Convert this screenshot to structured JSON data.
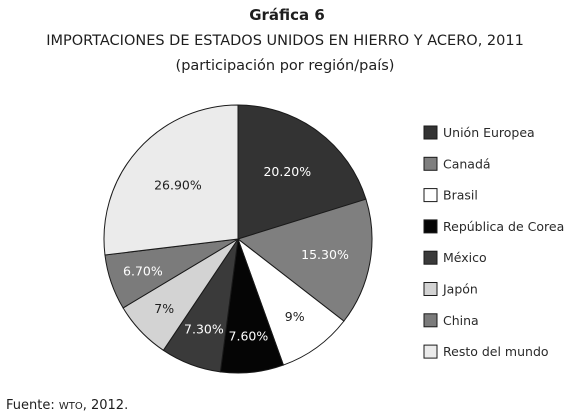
{
  "header": {
    "title": "Gráfica 6",
    "subtitle": "IMPORTACIONES DE ESTADOS UNIDOS EN HIERRO Y ACERO, 2011",
    "note": "(participación por región/país)"
  },
  "footer": {
    "source_label": "Fuente:",
    "source_org": "WTO",
    "source_year": ", 2012."
  },
  "chart_data": {
    "type": "pie",
    "title": "IMPORTACIONES DE ESTADOS UNIDOS EN HIERRO Y ACERO, 2011",
    "legend_position": "right",
    "slices": [
      {
        "name": "Unión Europea",
        "value": 20.2,
        "label": "20.20%",
        "color": "#333333",
        "label_color": "#ffffff"
      },
      {
        "name": "Canadá",
        "value": 15.3,
        "label": "15.30%",
        "color": "#7f7f7f",
        "label_color": "#ffffff"
      },
      {
        "name": "Brasil",
        "value": 9,
        "label": "9%",
        "color": "#ffffff",
        "label_color": "#1e1e1e"
      },
      {
        "name": "República de Corea",
        "value": 7.6,
        "label": "7.60%",
        "color": "#050505",
        "label_color": "#ffffff"
      },
      {
        "name": "México",
        "value": 7.3,
        "label": "7.30%",
        "color": "#3a3a3a",
        "label_color": "#ffffff"
      },
      {
        "name": "Japón",
        "value": 7,
        "label": "7%",
        "color": "#d3d3d3",
        "label_color": "#1e1e1e"
      },
      {
        "name": "China",
        "value": 6.7,
        "label": "6.70%",
        "color": "#7b7b7b",
        "label_color": "#ffffff"
      },
      {
        "name": "Resto del mundo",
        "value": 26.9,
        "label": "26.90%",
        "color": "#ebebeb",
        "label_color": "#1e1e1e"
      }
    ]
  }
}
